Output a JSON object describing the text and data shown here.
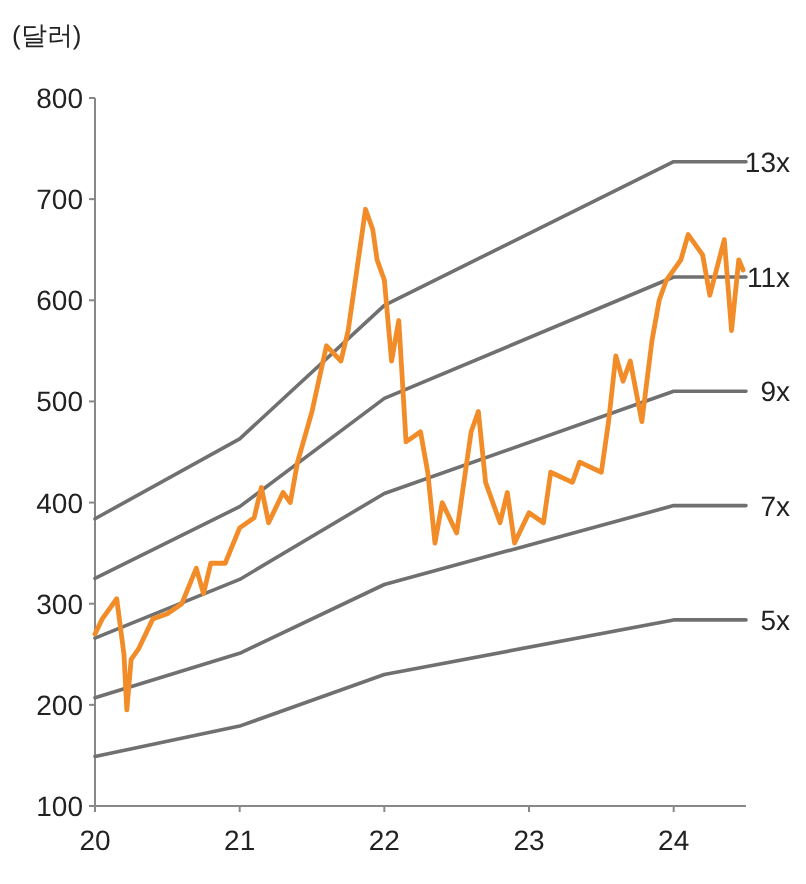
{
  "chart_data": {
    "type": "line",
    "ylabel": "(달러)",
    "xlim": [
      20,
      24.5
    ],
    "xticks": [
      20,
      21,
      22,
      23,
      24
    ],
    "ylim": [
      100,
      800
    ],
    "yticks": [
      100,
      200,
      300,
      400,
      500,
      600,
      700,
      800
    ],
    "grid": false,
    "legend": false,
    "marker": "none",
    "line_style": "solid",
    "series": [
      {
        "name": "13x",
        "color": "#707070",
        "x": [
          20,
          21,
          22,
          24,
          24.5
        ],
        "values": [
          384,
          463,
          595,
          737,
          737
        ]
      },
      {
        "name": "11x",
        "color": "#707070",
        "x": [
          20,
          21,
          22,
          24,
          24.5
        ],
        "values": [
          325,
          396,
          503,
          623,
          623
        ]
      },
      {
        "name": "9x",
        "color": "#707070",
        "x": [
          20,
          21,
          22,
          24,
          24.5
        ],
        "values": [
          266,
          324,
          409,
          510,
          510
        ]
      },
      {
        "name": "7x",
        "color": "#707070",
        "x": [
          20,
          21,
          22,
          24,
          24.5
        ],
        "values": [
          207,
          251,
          319,
          397,
          397
        ]
      },
      {
        "name": "5x",
        "color": "#707070",
        "x": [
          20,
          21,
          22,
          24,
          24.5
        ],
        "values": [
          149,
          179,
          230,
          284,
          284
        ]
      },
      {
        "color": "#f28c28",
        "x": [
          20.0,
          20.05,
          20.1,
          20.15,
          20.2,
          20.22,
          20.25,
          20.3,
          20.4,
          20.5,
          20.6,
          20.7,
          20.75,
          20.8,
          20.9,
          21.0,
          21.1,
          21.15,
          21.2,
          21.3,
          21.35,
          21.4,
          21.5,
          21.6,
          21.7,
          21.75,
          21.8,
          21.87,
          21.92,
          21.95,
          22.0,
          22.05,
          22.1,
          22.15,
          22.25,
          22.3,
          22.35,
          22.4,
          22.5,
          22.6,
          22.65,
          22.7,
          22.8,
          22.85,
          22.9,
          23.0,
          23.1,
          23.15,
          23.3,
          23.35,
          23.5,
          23.55,
          23.6,
          23.65,
          23.7,
          23.78,
          23.85,
          23.9,
          23.95,
          24.05,
          24.1,
          24.2,
          24.25,
          24.35,
          24.4,
          24.45,
          24.48
        ],
        "values": [
          270,
          285,
          295,
          305,
          250,
          195,
          245,
          255,
          285,
          290,
          300,
          335,
          310,
          340,
          340,
          375,
          385,
          415,
          380,
          410,
          400,
          440,
          490,
          555,
          540,
          570,
          620,
          690,
          670,
          640,
          620,
          540,
          580,
          460,
          470,
          430,
          360,
          400,
          370,
          470,
          490,
          420,
          380,
          410,
          360,
          390,
          380,
          430,
          420,
          440,
          430,
          480,
          545,
          520,
          540,
          480,
          560,
          600,
          620,
          640,
          665,
          645,
          605,
          660,
          570,
          640,
          630
        ]
      }
    ]
  }
}
